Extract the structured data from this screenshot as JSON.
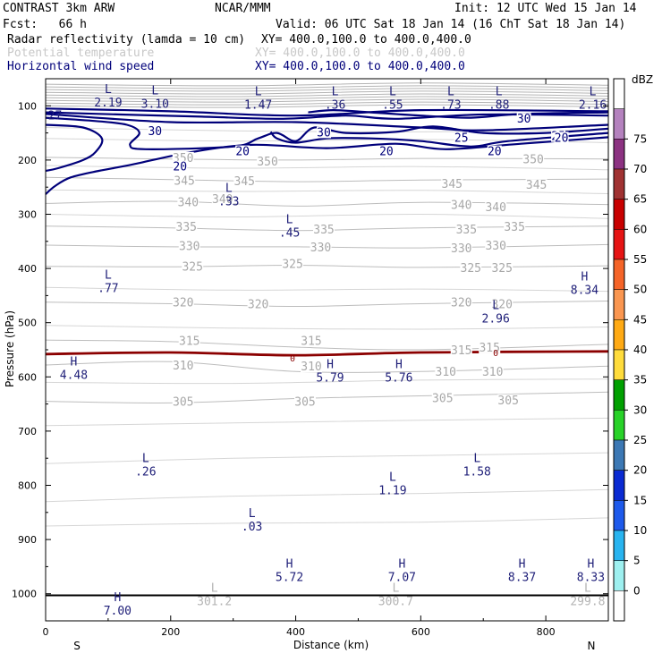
{
  "header": {
    "line1_left": "CONTRAST  3km ARW",
    "line1_mid": "NCAR/MMM",
    "line1_right": "Init: 12 UTC Wed 15 Jan 14",
    "line2_left": "Fcst:   66 h",
    "line2_right": "Valid: 06 UTC Sat 18 Jan 14 (16 ChT Sat 18 Jan 14)",
    "fields": [
      {
        "name": "Radar reflectivity (lamda = 10 cm)",
        "xy": "XY= 400.0,100.0 to 400.0,400.0",
        "color": "#000000"
      },
      {
        "name": "Potential temperature",
        "xy": "XY= 400.0,100.0 to 400.0,400.0",
        "color": "#c8c8c8"
      },
      {
        "name": "Horizontal wind speed",
        "xy": "XY= 400.0,100.0 to 400.0,400.0",
        "color": "#00007a"
      }
    ]
  },
  "chart_data": {
    "type": "vertical-cross-section",
    "xlabel": "Distance (km)",
    "ylabel": "Pressure (hPa)",
    "xlim": [
      0,
      900
    ],
    "ylim": [
      1050,
      50
    ],
    "x_ticks": [
      "0",
      "200",
      "400",
      "600",
      "800"
    ],
    "x_tick_values": [
      0,
      200,
      400,
      600,
      800
    ],
    "y_ticks": [
      "100",
      "200",
      "300",
      "400",
      "500",
      "600",
      "700",
      "800",
      "900",
      "1000"
    ],
    "y_tick_values": [
      100,
      200,
      300,
      400,
      500,
      600,
      700,
      800,
      900,
      1000
    ],
    "end_labels": {
      "left": "S",
      "right": "N"
    },
    "colorbar": {
      "title": "dBZ",
      "levels": [
        "0",
        "5",
        "10",
        "15",
        "20",
        "25",
        "30",
        "35",
        "40",
        "45",
        "50",
        "55",
        "60",
        "65",
        "70",
        "75"
      ],
      "colors": [
        "#ffffff",
        "#9ef0f0",
        "#28b4f0",
        "#1e5aeb",
        "#0a2ad2",
        "#3c78b4",
        "#28d228",
        "#00a000",
        "#ffdc3c",
        "#ffaa14",
        "#fa9650",
        "#f56428",
        "#e61414",
        "#c80000",
        "#a03232",
        "#8c3282",
        "#b482be",
        "#ffffff"
      ]
    },
    "theta_contours": [
      {
        "value": 350,
        "points": [
          [
            0,
            195
          ],
          [
            200,
            198
          ],
          [
            400,
            200
          ],
          [
            600,
            197
          ],
          [
            900,
            198
          ]
        ]
      },
      {
        "value": 345,
        "points": [
          [
            0,
            232
          ],
          [
            200,
            236
          ],
          [
            400,
            240
          ],
          [
            600,
            237
          ],
          [
            900,
            235
          ]
        ]
      },
      {
        "value": 340,
        "points": [
          [
            0,
            280
          ],
          [
            200,
            276
          ],
          [
            400,
            285
          ],
          [
            600,
            278
          ],
          [
            900,
            282
          ]
        ]
      },
      {
        "value": 335,
        "points": [
          [
            0,
            322
          ],
          [
            200,
            325
          ],
          [
            400,
            330
          ],
          [
            600,
            325
          ],
          [
            900,
            322
          ]
        ]
      },
      {
        "value": 330,
        "points": [
          [
            0,
            357
          ],
          [
            200,
            360
          ],
          [
            400,
            360
          ],
          [
            600,
            362
          ],
          [
            900,
            356
          ]
        ]
      },
      {
        "value": 325,
        "points": [
          [
            0,
            396
          ],
          [
            200,
            397
          ],
          [
            400,
            394
          ],
          [
            600,
            398
          ],
          [
            900,
            395
          ]
        ]
      },
      {
        "value": 320,
        "points": [
          [
            0,
            462
          ],
          [
            200,
            465
          ],
          [
            400,
            470
          ],
          [
            600,
            465
          ],
          [
            900,
            460
          ]
        ]
      },
      {
        "value": 315,
        "points": [
          [
            0,
            532
          ],
          [
            200,
            535
          ],
          [
            400,
            545
          ],
          [
            600,
            550
          ],
          [
            900,
            540
          ]
        ]
      },
      {
        "value": 310,
        "points": [
          [
            0,
            578
          ],
          [
            200,
            572
          ],
          [
            400,
            590
          ],
          [
            600,
            590
          ],
          [
            900,
            580
          ]
        ]
      },
      {
        "value": 305,
        "points": [
          [
            0,
            645
          ],
          [
            200,
            648
          ],
          [
            400,
            640
          ],
          [
            600,
            635
          ],
          [
            900,
            628
          ]
        ]
      }
    ],
    "theta_labels": [
      {
        "text": "350",
        "x": 220,
        "p": 195
      },
      {
        "text": "350",
        "x": 355,
        "p": 202
      },
      {
        "text": "350",
        "x": 780,
        "p": 198
      },
      {
        "text": "345",
        "x": 222,
        "p": 237
      },
      {
        "text": "345",
        "x": 318,
        "p": 238
      },
      {
        "text": "345",
        "x": 650,
        "p": 243
      },
      {
        "text": "345",
        "x": 785,
        "p": 245
      },
      {
        "text": "340",
        "x": 228,
        "p": 277
      },
      {
        "text": "340",
        "x": 283,
        "p": 271
      },
      {
        "text": "340",
        "x": 665,
        "p": 282
      },
      {
        "text": "340",
        "x": 720,
        "p": 286
      },
      {
        "text": "335",
        "x": 225,
        "p": 322
      },
      {
        "text": "335",
        "x": 445,
        "p": 327
      },
      {
        "text": "335",
        "x": 673,
        "p": 327
      },
      {
        "text": "335",
        "x": 750,
        "p": 322
      },
      {
        "text": "330",
        "x": 230,
        "p": 358
      },
      {
        "text": "330",
        "x": 440,
        "p": 360
      },
      {
        "text": "330",
        "x": 665,
        "p": 362
      },
      {
        "text": "330",
        "x": 720,
        "p": 357
      },
      {
        "text": "325",
        "x": 235,
        "p": 396
      },
      {
        "text": "325",
        "x": 395,
        "p": 391
      },
      {
        "text": "325",
        "x": 680,
        "p": 398
      },
      {
        "text": "325",
        "x": 730,
        "p": 398
      },
      {
        "text": "320",
        "x": 220,
        "p": 462
      },
      {
        "text": "320",
        "x": 340,
        "p": 465
      },
      {
        "text": "320",
        "x": 665,
        "p": 462
      },
      {
        "text": "320",
        "x": 730,
        "p": 465
      },
      {
        "text": "315",
        "x": 230,
        "p": 533
      },
      {
        "text": "315",
        "x": 425,
        "p": 533
      },
      {
        "text": "315",
        "x": 665,
        "p": 550
      },
      {
        "text": "315",
        "x": 710,
        "p": 545
      },
      {
        "text": "310",
        "x": 220,
        "p": 578
      },
      {
        "text": "310",
        "x": 425,
        "p": 580
      },
      {
        "text": "310",
        "x": 640,
        "p": 590
      },
      {
        "text": "310",
        "x": 715,
        "p": 590
      },
      {
        "text": "305",
        "x": 220,
        "p": 645
      },
      {
        "text": "305",
        "x": 415,
        "p": 645
      },
      {
        "text": "305",
        "x": 635,
        "p": 638
      },
      {
        "text": "305",
        "x": 740,
        "p": 642
      }
    ],
    "wind_contours": [
      {
        "value": 20,
        "points": [
          [
            0,
            263
          ],
          [
            15,
            248
          ],
          [
            40,
            232
          ],
          [
            85,
            220
          ],
          [
            140,
            208
          ],
          [
            230,
            186
          ],
          [
            330,
            172
          ],
          [
            450,
            178
          ],
          [
            560,
            170
          ],
          [
            640,
            180
          ],
          [
            760,
            170
          ],
          [
            900,
            158
          ]
        ]
      },
      {
        "value": 25,
        "points": [
          [
            0,
            115
          ],
          [
            200,
            130
          ],
          [
            400,
            130
          ],
          [
            600,
            140
          ],
          [
            700,
            145
          ],
          [
            900,
            135
          ]
        ]
      },
      {
        "value": 30,
        "points": [
          [
            0,
            105
          ],
          [
            200,
            110
          ],
          [
            400,
            118
          ],
          [
            600,
            108
          ],
          [
            900,
            110
          ]
        ]
      }
    ],
    "wind_labels": [
      {
        "text": "30",
        "x": 175,
        "p": 146
      },
      {
        "text": "30",
        "x": 445,
        "p": 148
      },
      {
        "text": "30",
        "x": 765,
        "p": 123
      },
      {
        "text": "25",
        "x": 665,
        "p": 158
      },
      {
        "text": "25",
        "x": 820,
        "p": 155
      },
      {
        "text": "20",
        "x": 215,
        "p": 211
      },
      {
        "text": "20",
        "x": 315,
        "p": 183
      },
      {
        "text": "20",
        "x": 545,
        "p": 183
      },
      {
        "text": "20",
        "x": 718,
        "p": 183
      },
      {
        "text": "20",
        "x": 825,
        "p": 158
      }
    ],
    "reflectivity_zero_line": {
      "value": 0,
      "points": [
        [
          0,
          558
        ],
        [
          200,
          555
        ],
        [
          400,
          560
        ],
        [
          600,
          555
        ],
        [
          900,
          553
        ]
      ]
    },
    "reflectivity_labels": [
      {
        "text": "0",
        "x": 395,
        "p": 565
      },
      {
        "text": "0",
        "x": 720,
        "p": 555
      }
    ],
    "extrema": [
      {
        "type": "L",
        "value": "2.19",
        "x": 100,
        "p": 80,
        "field": "wind"
      },
      {
        "type": "L",
        "value": "3.10",
        "x": 175,
        "p": 82,
        "field": "wind"
      },
      {
        "type": "L",
        "value": "1.47",
        "x": 340,
        "p": 84,
        "field": "wind"
      },
      {
        "type": "L",
        "value": ".36",
        "x": 463,
        "p": 84,
        "field": "wind"
      },
      {
        "type": "L",
        "value": ".55",
        "x": 555,
        "p": 84,
        "field": "wind"
      },
      {
        "type": "L",
        "value": ".73",
        "x": 648,
        "p": 84,
        "field": "wind"
      },
      {
        "type": "L",
        "value": ".88",
        "x": 725,
        "p": 84,
        "field": "wind"
      },
      {
        "type": "L",
        "value": "2.16",
        "x": 875,
        "p": 84,
        "field": "wind"
      },
      {
        "type": "L",
        "value": ".33",
        "x": 293,
        "p": 262,
        "field": "wind"
      },
      {
        "type": "L",
        "value": ".45",
        "x": 390,
        "p": 320,
        "field": "wind"
      },
      {
        "type": "L",
        "value": ".77",
        "x": 100,
        "p": 422,
        "field": "wind"
      },
      {
        "type": "H",
        "value": "8.34",
        "x": 862,
        "p": 425,
        "field": "wind"
      },
      {
        "type": "L",
        "value": "2.96",
        "x": 720,
        "p": 478,
        "field": "wind"
      },
      {
        "type": "H",
        "value": "4.48",
        "x": 45,
        "p": 582,
        "field": "wind"
      },
      {
        "type": "H",
        "value": "5.79",
        "x": 455,
        "p": 587,
        "field": "wind"
      },
      {
        "type": "H",
        "value": "5.76",
        "x": 565,
        "p": 587,
        "field": "wind"
      },
      {
        "type": "L",
        "value": ".26",
        "x": 160,
        "p": 760,
        "field": "wind"
      },
      {
        "type": "L",
        "value": "1.58",
        "x": 690,
        "p": 760,
        "field": "wind"
      },
      {
        "type": "L",
        "value": "1.19",
        "x": 555,
        "p": 795,
        "field": "wind"
      },
      {
        "type": "L",
        "value": ".03",
        "x": 330,
        "p": 862,
        "field": "wind"
      },
      {
        "type": "H",
        "value": "5.72",
        "x": 390,
        "p": 955,
        "field": "wind"
      },
      {
        "type": "H",
        "value": "7.07",
        "x": 570,
        "p": 955,
        "field": "wind"
      },
      {
        "type": "H",
        "value": "8.37",
        "x": 762,
        "p": 955,
        "field": "wind"
      },
      {
        "type": "H",
        "value": "8.33",
        "x": 872,
        "p": 955,
        "field": "wind"
      },
      {
        "type": "H",
        "value": "7.00",
        "x": 115,
        "p": 1017,
        "field": "wind"
      },
      {
        "type": "L",
        "value": "301.2",
        "x": 270,
        "p": 1000,
        "field": "theta"
      },
      {
        "type": "L",
        "value": "300.7",
        "x": 560,
        "p": 1000,
        "field": "theta"
      },
      {
        "type": "L",
        "value": "299.8",
        "x": 867,
        "p": 1000,
        "field": "theta"
      }
    ],
    "partial_label": {
      "text": "27",
      "x": 15,
      "p": 82
    },
    "ground_line_p": 1003
  }
}
